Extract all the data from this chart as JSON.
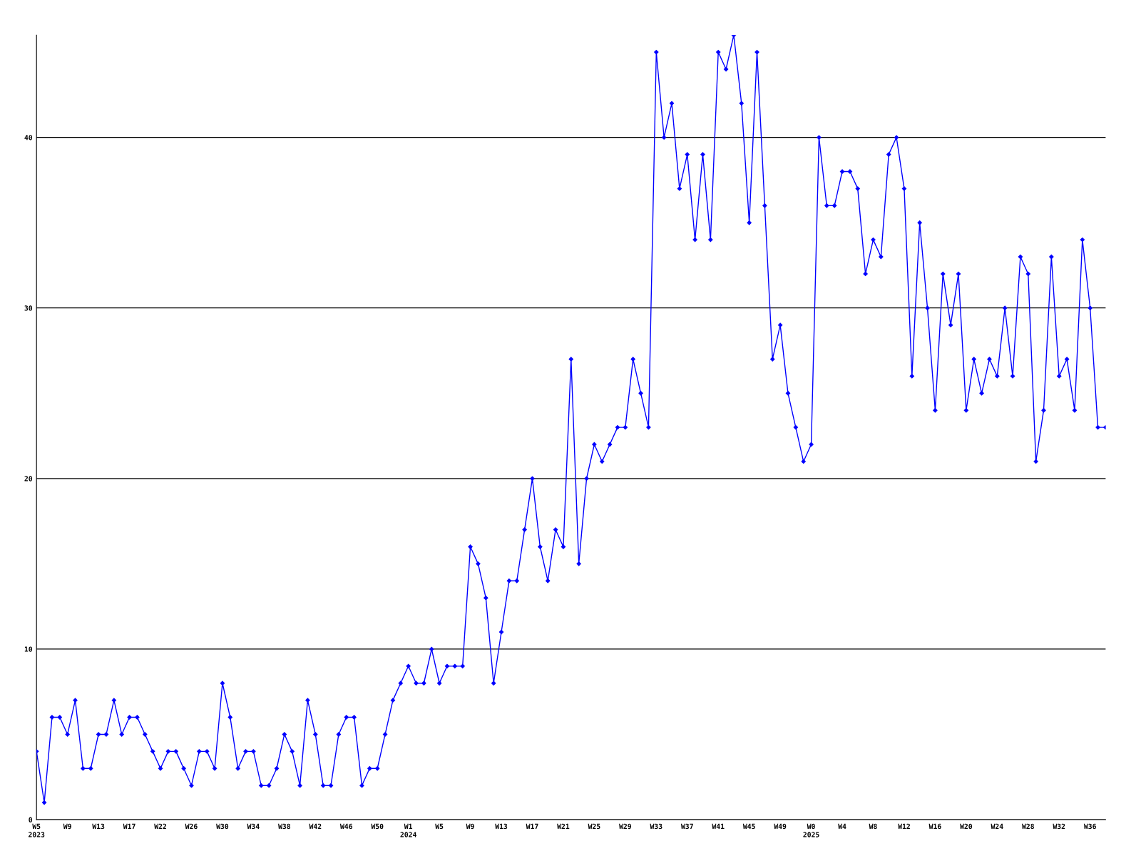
{
  "chart_data": {
    "type": "line",
    "categories": [
      "W5\n2023",
      null,
      null,
      null,
      "W9",
      null,
      null,
      null,
      "W13",
      null,
      null,
      null,
      "W17",
      null,
      null,
      null,
      "W22",
      null,
      null,
      null,
      "W26",
      null,
      null,
      null,
      "W30",
      null,
      null,
      null,
      "W34",
      null,
      null,
      null,
      "W38",
      null,
      null,
      null,
      "W42",
      null,
      null,
      null,
      "W46",
      null,
      null,
      null,
      "W50",
      null,
      null,
      null,
      "W1\n2024",
      null,
      null,
      null,
      "W5",
      null,
      null,
      null,
      "W9",
      null,
      null,
      null,
      "W13",
      null,
      null,
      null,
      "W17",
      null,
      null,
      null,
      "W21",
      null,
      null,
      null,
      "W25",
      null,
      null,
      null,
      "W29",
      null,
      null,
      null,
      "W33",
      null,
      null,
      null,
      "W37",
      null,
      null,
      null,
      "W41",
      null,
      null,
      null,
      "W45",
      null,
      null,
      null,
      "W49",
      null,
      null,
      null,
      "W0\n2025",
      null,
      null,
      null,
      "W4",
      null,
      null,
      null,
      "W8",
      null,
      null,
      null,
      "W12",
      null,
      null,
      null,
      "W16",
      null,
      null,
      null,
      "W20",
      null,
      null,
      null,
      "W24",
      null,
      null,
      null,
      "W28",
      null,
      null,
      null,
      "W32",
      null,
      null,
      null,
      "W36",
      null,
      null
    ],
    "series": [
      {
        "color": "#0000ff",
        "values": [
          4,
          1,
          6,
          6,
          5,
          7,
          3,
          3,
          5,
          5,
          7,
          5,
          6,
          6,
          5,
          4,
          3,
          4,
          4,
          3,
          2,
          4,
          4,
          3,
          8,
          6,
          3,
          4,
          4,
          2,
          2,
          3,
          5,
          4,
          2,
          7,
          5,
          2,
          2,
          5,
          6,
          6,
          2,
          3,
          3,
          5,
          7,
          8,
          9,
          8,
          8,
          10,
          8,
          9,
          9,
          9,
          16,
          15,
          13,
          8,
          11,
          14,
          14,
          17,
          20,
          16,
          14,
          17,
          16,
          27,
          15,
          20,
          22,
          21,
          22,
          23,
          23,
          27,
          25,
          23,
          45,
          40,
          42,
          37,
          39,
          34,
          39,
          34,
          45,
          44,
          46,
          42,
          35,
          45,
          36,
          27,
          29,
          25,
          23,
          21,
          22,
          40,
          36,
          36,
          38,
          38,
          37,
          32,
          34,
          33,
          39,
          40,
          37,
          26,
          35,
          30,
          24,
          32,
          29,
          32,
          24,
          27,
          25,
          27,
          26,
          30,
          26,
          33,
          32,
          21,
          24,
          33,
          26,
          27,
          24,
          34,
          30,
          23,
          23
        ]
      }
    ],
    "ylim": [
      0,
      46
    ],
    "yticks": [
      0,
      10,
      20,
      30,
      40
    ],
    "grid": "y",
    "marker": "diamond",
    "line_style": "solid"
  }
}
